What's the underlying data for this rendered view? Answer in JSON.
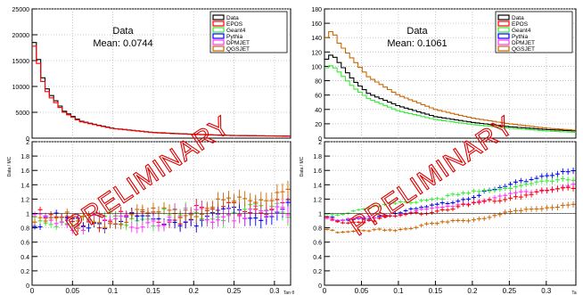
{
  "watermark": "PRELIMINARY",
  "colors": {
    "Data": "#000000",
    "EPOS": "#ff0000",
    "Geant4": "#33ee33",
    "Pythia": "#0000ff",
    "DPMJET": "#ff33ff",
    "QGSJET": "#cc6600"
  },
  "chart_data": [
    {
      "type": "line",
      "title": "",
      "annotation": {
        "line1": "Data",
        "line2": "Mean: 0.0744"
      },
      "legend": {
        "placement": "top-right",
        "entries": [
          "Data",
          "EPOS",
          "Geant4",
          "Pythia",
          "DPMJET",
          "QGSJET"
        ]
      },
      "grid": true,
      "xlabel": "Tan θ",
      "top": {
        "ylabel": "",
        "ylim": [
          0,
          25000
        ],
        "yticks": [
          "0",
          "5000",
          "10000",
          "15000",
          "20000",
          "25000"
        ],
        "series": [
          {
            "name": "Data",
            "x": [
              0.005,
              0.01,
              0.02,
              0.04,
              0.06,
              0.1,
              0.15,
              0.2,
              0.25,
              0.32
            ],
            "values": [
              18500,
              13000,
              9000,
              5200,
              3300,
              1900,
              1100,
              750,
              520,
              400
            ]
          },
          {
            "name": "EPOS",
            "x": [
              0.005,
              0.01,
              0.02,
              0.04,
              0.06,
              0.1,
              0.15,
              0.2,
              0.25,
              0.32
            ],
            "values": [
              17800,
              12200,
              8500,
              5000,
              3200,
              1850,
              1050,
              700,
              480,
              370
            ]
          }
        ]
      },
      "bottom": {
        "ylabel": "Data / MC",
        "ylim": [
          0,
          2.0
        ],
        "yticks": [
          "0",
          "0.2",
          "0.4",
          "0.6",
          "0.8",
          "1",
          "1.2",
          "1.4",
          "1.6",
          "1.8",
          "2"
        ],
        "xlim": [
          0,
          0.32
        ],
        "xticks": [
          "0",
          "0.05",
          "0.1",
          "0.15",
          "0.2",
          "0.25",
          "0.3",
          "0.3"
        ],
        "series": [
          {
            "name": "EPOS",
            "x": [
              0.0,
              0.05,
              0.1,
              0.15,
              0.2,
              0.25,
              0.3,
              0.32
            ],
            "values": [
              1.02,
              0.93,
              0.97,
              1.0,
              1.05,
              1.1,
              1.15,
              1.2
            ]
          },
          {
            "name": "Geant4",
            "x": [
              0.0,
              0.05,
              0.1,
              0.15,
              0.2,
              0.25,
              0.3,
              0.32
            ],
            "values": [
              1.0,
              0.94,
              0.98,
              1.0,
              1.03,
              1.08,
              1.1,
              1.12
            ]
          },
          {
            "name": "Pythia",
            "x": [
              0.0,
              0.05,
              0.1,
              0.15,
              0.2,
              0.25,
              0.3,
              0.32
            ],
            "values": [
              1.0,
              0.92,
              0.95,
              0.97,
              1.0,
              1.05,
              1.08,
              1.1
            ]
          },
          {
            "name": "DPMJET",
            "x": [
              0.0,
              0.05,
              0.1,
              0.15,
              0.2,
              0.25,
              0.3,
              0.32
            ],
            "values": [
              1.02,
              0.93,
              0.96,
              0.98,
              1.02,
              1.06,
              1.1,
              1.12
            ]
          },
          {
            "name": "QGSJET",
            "x": [
              0.0,
              0.05,
              0.1,
              0.15,
              0.2,
              0.25,
              0.3,
              0.32
            ],
            "values": [
              1.04,
              0.95,
              0.99,
              1.02,
              1.1,
              1.2,
              1.35,
              1.45
            ]
          }
        ]
      }
    },
    {
      "type": "line",
      "title": "",
      "annotation": {
        "line1": "Data",
        "line2": "Mean: 0.1061"
      },
      "legend": {
        "placement": "top-right",
        "entries": [
          "Data",
          "EPOS",
          "Geant4",
          "Pythia",
          "DPMJET",
          "QGSJET"
        ]
      },
      "grid": true,
      "xlabel": "Ta",
      "top": {
        "ylabel": "",
        "ylim": [
          0,
          180
        ],
        "yticks": [
          "0",
          "20",
          "40",
          "60",
          "80",
          "100",
          "120",
          "140",
          "160",
          "180"
        ],
        "series": [
          {
            "name": "Data",
            "x": [
              0.005,
              0.01,
              0.02,
              0.04,
              0.06,
              0.1,
              0.15,
              0.2,
              0.25,
              0.3,
              0.34
            ],
            "values": [
              110,
              118,
              105,
              80,
              62,
              45,
              30,
              22,
              16,
              12,
              10
            ]
          },
          {
            "name": "Geant4",
            "x": [
              0.005,
              0.01,
              0.02,
              0.04,
              0.06,
              0.1,
              0.15,
              0.2,
              0.25,
              0.3,
              0.34
            ],
            "values": [
              98,
              102,
              92,
              70,
              55,
              38,
              26,
              19,
              14,
              10,
              8
            ]
          },
          {
            "name": "QGSJET",
            "x": [
              0.005,
              0.01,
              0.02,
              0.04,
              0.06,
              0.1,
              0.15,
              0.2,
              0.25,
              0.3,
              0.34
            ],
            "values": [
              140,
              152,
              132,
              108,
              85,
              60,
              40,
              28,
              20,
              14,
              11
            ]
          }
        ]
      },
      "bottom": {
        "ylabel": "Data / MC",
        "ylim": [
          0,
          2.0
        ],
        "yticks": [
          "0",
          "0.2",
          "0.4",
          "0.6",
          "0.8",
          "1",
          "1.2",
          "1.4",
          "1.6",
          "1.8",
          "2"
        ],
        "xlim": [
          0,
          0.34
        ],
        "xticks": [
          "0",
          "0.05",
          "0.1",
          "0.15",
          "0.2",
          "0.25",
          "0.3",
          "0.3"
        ],
        "series": [
          {
            "name": "Pythia",
            "x": [
              0.0,
              0.02,
              0.05,
              0.1,
              0.15,
              0.2,
              0.25,
              0.3,
              0.34
            ],
            "values": [
              0.98,
              0.9,
              0.93,
              1.02,
              1.12,
              1.25,
              1.4,
              1.55,
              1.6
            ]
          },
          {
            "name": "Geant4",
            "x": [
              0.0,
              0.02,
              0.05,
              0.1,
              0.15,
              0.2,
              0.25,
              0.3,
              0.34
            ],
            "values": [
              1.0,
              1.0,
              1.08,
              1.15,
              1.22,
              1.3,
              1.38,
              1.45,
              1.5
            ]
          },
          {
            "name": "DPMJET",
            "x": [
              0.0,
              0.02,
              0.05,
              0.1,
              0.15,
              0.2,
              0.25,
              0.3,
              0.34
            ],
            "values": [
              0.98,
              0.9,
              0.94,
              1.0,
              1.08,
              1.17,
              1.27,
              1.35,
              1.4
            ]
          },
          {
            "name": "EPOS",
            "x": [
              0.0,
              0.02,
              0.05,
              0.1,
              0.15,
              0.2,
              0.25,
              0.3,
              0.34
            ],
            "values": [
              0.97,
              0.88,
              0.9,
              0.98,
              1.05,
              1.14,
              1.23,
              1.33,
              1.38
            ]
          },
          {
            "name": "QGSJET",
            "x": [
              0.0,
              0.02,
              0.05,
              0.1,
              0.15,
              0.2,
              0.25,
              0.3,
              0.34
            ],
            "values": [
              0.82,
              0.75,
              0.76,
              0.8,
              0.86,
              0.93,
              1.02,
              1.1,
              1.15
            ]
          }
        ]
      }
    }
  ]
}
